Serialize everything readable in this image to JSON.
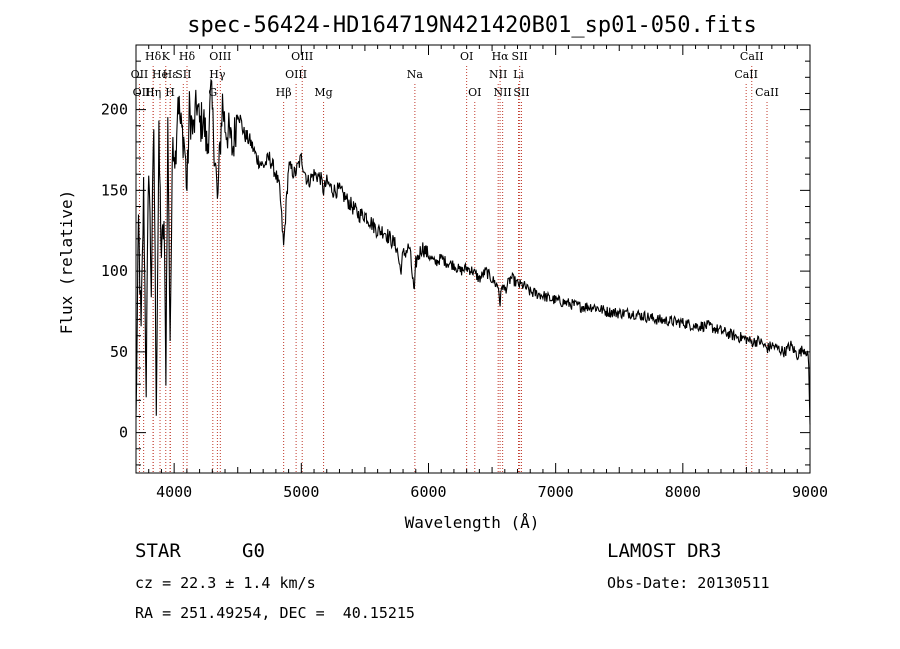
{
  "chart_data": {
    "type": "line",
    "title": "spec-56424-HD164719N421420B01_sp01-050.fits",
    "xlabel": "Wavelength (Å)",
    "ylabel": "Flux (relative)",
    "xlim": [
      3700,
      9000
    ],
    "ylim": [
      -25,
      240
    ],
    "xticks": [
      4000,
      5000,
      6000,
      7000,
      8000,
      9000
    ],
    "yticks": [
      0,
      50,
      100,
      150,
      200
    ],
    "xtick_labels": [
      "4000",
      "5000",
      "6000",
      "7000",
      "8000",
      "9000"
    ],
    "ytick_labels": [
      "0",
      "50",
      "100",
      "150",
      "200"
    ],
    "series": [
      {
        "name": "spectrum",
        "color": "#000000",
        "x": [
          3700,
          3720,
          3740,
          3760,
          3780,
          3800,
          3820,
          3840,
          3860,
          3880,
          3900,
          3920,
          3935,
          3950,
          3968,
          3990,
          4010,
          4030,
          4050,
          4080,
          4101,
          4120,
          4150,
          4180,
          4200,
          4230,
          4260,
          4290,
          4310,
          4330,
          4340,
          4360,
          4380,
          4400,
          4430,
          4460,
          4500,
          4550,
          4600,
          4650,
          4700,
          4750,
          4800,
          4830,
          4861,
          4900,
          4950,
          5000,
          5050,
          5100,
          5150,
          5175,
          5200,
          5250,
          5300,
          5350,
          5400,
          5450,
          5500,
          5550,
          5600,
          5650,
          5700,
          5750,
          5780,
          5800,
          5850,
          5889,
          5900,
          5950,
          6000,
          6050,
          6100,
          6150,
          6200,
          6250,
          6300,
          6350,
          6400,
          6450,
          6500,
          6550,
          6563,
          6580,
          6600,
          6650,
          6700,
          6750,
          6800,
          6850,
          6900,
          6950,
          7000,
          7100,
          7200,
          7300,
          7400,
          7500,
          7600,
          7700,
          7800,
          7900,
          8000,
          8100,
          8200,
          8300,
          8400,
          8500,
          8542,
          8600,
          8662,
          8700,
          8750,
          8800,
          8850,
          8900,
          8950,
          8980,
          8990,
          9000
        ],
        "y": [
          5,
          130,
          60,
          150,
          30,
          170,
          90,
          190,
          20,
          180,
          110,
          130,
          40,
          190,
          60,
          185,
          170,
          210,
          190,
          180,
          150,
          200,
          185,
          205,
          190,
          195,
          175,
          210,
          185,
          160,
          140,
          175,
          205,
          190,
          185,
          175,
          200,
          185,
          180,
          170,
          165,
          170,
          160,
          150,
          115,
          165,
          160,
          170,
          155,
          160,
          158,
          150,
          155,
          150,
          150,
          145,
          140,
          135,
          135,
          130,
          125,
          125,
          120,
          115,
          100,
          110,
          115,
          85,
          105,
          115,
          110,
          105,
          108,
          105,
          104,
          100,
          102,
          100,
          95,
          100,
          95,
          90,
          80,
          92,
          88,
          96,
          92,
          91,
          87,
          86,
          85,
          83,
          82,
          80,
          78,
          78,
          75,
          74,
          74,
          72,
          70,
          69,
          68,
          66,
          66,
          63,
          60,
          58,
          56,
          57,
          52,
          54,
          52,
          50,
          54,
          48,
          52,
          50,
          40,
          5
        ]
      }
    ],
    "spectral_lines": [
      {
        "name": "Hδ",
        "wavelength": 3835,
        "row": 1
      },
      {
        "name": "OII",
        "wavelength": 3727,
        "row": 2
      },
      {
        "name": "OIII",
        "wavelength": 3760,
        "row": 3
      },
      {
        "name": "He",
        "wavelength": 3889,
        "row": 2
      },
      {
        "name": "Hη",
        "wavelength": 3835,
        "row": 3
      },
      {
        "name": "K",
        "wavelength": 3934,
        "row": 1
      },
      {
        "name": "H",
        "wavelength": 3968,
        "row": 3
      },
      {
        "name": "Hε",
        "wavelength": 3970,
        "row": 2
      },
      {
        "name": "SII",
        "wavelength": 4072,
        "row": 2
      },
      {
        "name": "Hδ",
        "wavelength": 4101,
        "row": 1
      },
      {
        "name": "OIII",
        "wavelength": 4363,
        "row": 1
      },
      {
        "name": "Hγ",
        "wavelength": 4340,
        "row": 2
      },
      {
        "name": "G",
        "wavelength": 4304,
        "row": 3
      },
      {
        "name": "Hβ",
        "wavelength": 4861,
        "row": 3
      },
      {
        "name": "OIII",
        "wavelength": 5007,
        "row": 1
      },
      {
        "name": "OIII",
        "wavelength": 4959,
        "row": 2
      },
      {
        "name": "Mg",
        "wavelength": 5175,
        "row": 3
      },
      {
        "name": "Na",
        "wavelength": 5893,
        "row": 2
      },
      {
        "name": "OI",
        "wavelength": 6300,
        "row": 1
      },
      {
        "name": "OI",
        "wavelength": 6364,
        "row": 3
      },
      {
        "name": "Hα",
        "wavelength": 6563,
        "row": 1
      },
      {
        "name": "NII",
        "wavelength": 6548,
        "row": 2
      },
      {
        "name": "NII",
        "wavelength": 6583,
        "row": 3
      },
      {
        "name": "SII",
        "wavelength": 6717,
        "row": 1
      },
      {
        "name": "Li",
        "wavelength": 6708,
        "row": 2
      },
      {
        "name": "SII",
        "wavelength": 6731,
        "row": 3
      },
      {
        "name": "CaII",
        "wavelength": 8542,
        "row": 1
      },
      {
        "name": "CaII",
        "wavelength": 8498,
        "row": 2
      },
      {
        "name": "CaII",
        "wavelength": 8662,
        "row": 3
      }
    ]
  },
  "info": {
    "class_label": "STAR",
    "subclass": "G0",
    "survey": "LAMOST DR3",
    "cz": "cz = 22.3 ± 1.4 km/s",
    "obs_date": "Obs-Date: 20130511",
    "coords": "RA = 251.49254, DEC =  40.15215"
  }
}
